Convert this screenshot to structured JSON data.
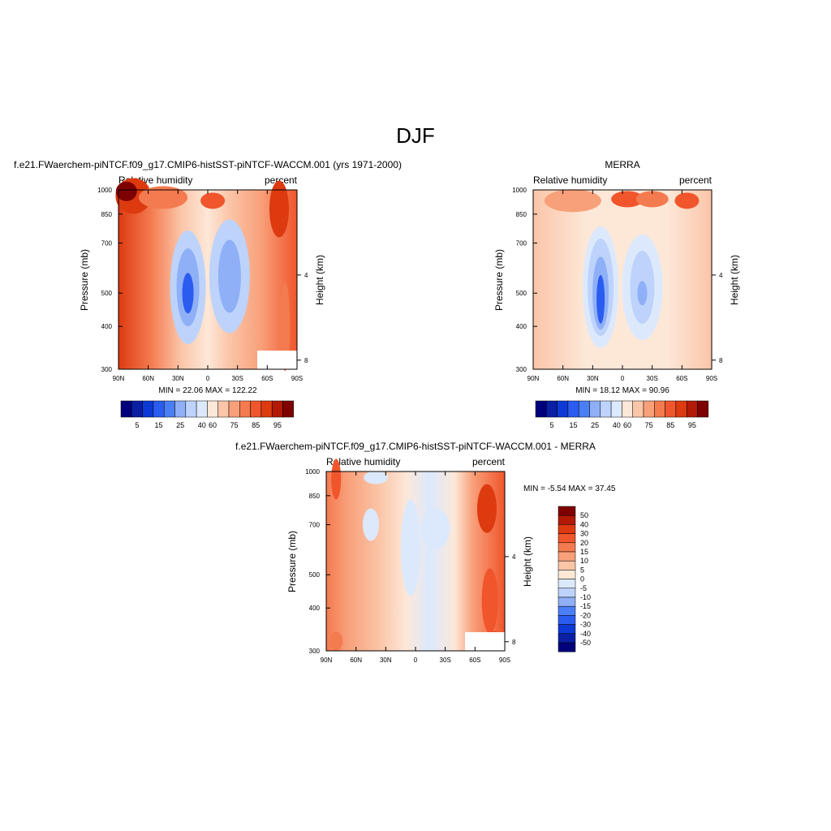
{
  "page": {
    "title": "DJF"
  },
  "colors": {
    "rh_scale": [
      "#00007a",
      "#0a1fa3",
      "#0d3ad6",
      "#2b5cf0",
      "#4a7ef5",
      "#8fb0f7",
      "#bdd3fb",
      "#dce9fd",
      "#fde8d8",
      "#fbc5a8",
      "#f8a07a",
      "#f47a4f",
      "#f0552c",
      "#dd3a10",
      "#b21a05",
      "#7f0000"
    ],
    "diff_scale": [
      "#7f0000",
      "#b21a05",
      "#dd3a10",
      "#f0552c",
      "#f47a4f",
      "#f8a07a",
      "#fbc5a8",
      "#fde8d8",
      "#dce9fd",
      "#bdd3fb",
      "#8fb0f7",
      "#4a7ef5",
      "#2b5cf0",
      "#0d3ad6",
      "#0a1fa3",
      "#00007a"
    ]
  },
  "chart_data": [
    {
      "type": "heatmap",
      "panel": "model",
      "title": "f.e21.FWaerchem-piNTCF.f09_g17.CMIP6-histSST-piNTCF-WACCM.001 (yrs 1971-2000)",
      "left_label": "Relative humidity",
      "right_label": "percent",
      "xlabel": "",
      "ylabel": "Pressure (mb)",
      "y2label": "Height (km)",
      "xticks": [
        "90N",
        "60N",
        "30N",
        "0",
        "30S",
        "60S",
        "90S"
      ],
      "yticks": [
        "300",
        "400",
        "500",
        "700",
        "850",
        "1000"
      ],
      "y2ticks": [
        "8",
        "4"
      ],
      "ylim": [
        1000,
        300
      ],
      "min": 22.06,
      "max": 122.22,
      "stats_text": "MIN =  22.06  MAX = 122.22",
      "colorbar_labels": [
        "5",
        "15",
        "25",
        "40",
        "60",
        "75",
        "85",
        "95"
      ],
      "fields": [
        {
          "lat": 10,
          "p": 500,
          "sx": 0.12,
          "sy": 0.35,
          "a": -60
        },
        {
          "lat": -20,
          "p": 560,
          "sx": 0.14,
          "sy": 0.35,
          "a": -45
        },
        {
          "lat": 70,
          "p": 950,
          "sx": 0.12,
          "sy": 0.2,
          "a": 40
        },
        {
          "lat": -75,
          "p": 800,
          "sx": 0.1,
          "sy": 0.25,
          "a": 30
        },
        {
          "lat": 0,
          "p": 900,
          "sx": 0.1,
          "sy": 0.12,
          "a": 15
        }
      ],
      "base": 65
    },
    {
      "type": "heatmap",
      "panel": "obs",
      "title": "MERRA",
      "left_label": "Relative humidity",
      "right_label": "percent",
      "xlabel": "",
      "ylabel": "Pressure (mb)",
      "y2label": "Height (km)",
      "xticks": [
        "90N",
        "60N",
        "30N",
        "0",
        "30S",
        "60S",
        "90S"
      ],
      "yticks": [
        "300",
        "400",
        "500",
        "700",
        "850",
        "1000"
      ],
      "y2ticks": [
        "8",
        "4"
      ],
      "ylim": [
        1000,
        300
      ],
      "min": 18.12,
      "max": 90.96,
      "stats_text": "MIN =  18.12  MAX =  90.96",
      "colorbar_labels": [
        "5",
        "15",
        "25",
        "40",
        "60",
        "75",
        "85",
        "95"
      ],
      "fields": [
        {
          "lat": 10,
          "p": 500,
          "sx": 0.12,
          "sy": 0.35,
          "a": -65
        },
        {
          "lat": -20,
          "p": 520,
          "sx": 0.13,
          "sy": 0.35,
          "a": -45
        },
        {
          "lat": 0,
          "p": 920,
          "sx": 0.35,
          "sy": 0.12,
          "a": 25
        }
      ],
      "base": 60
    },
    {
      "type": "heatmap",
      "panel": "diff",
      "title": "f.e21.FWaerchem-piNTCF.f09_g17.CMIP6-histSST-piNTCF-WACCM.001 - MERRA",
      "left_label": "Relative humidity",
      "right_label": "percent",
      "xlabel": "",
      "ylabel": "Pressure (mb)",
      "y2label": "Height (km)",
      "xticks": [
        "90N",
        "60N",
        "30N",
        "0",
        "30S",
        "60S",
        "90S"
      ],
      "yticks": [
        "300",
        "400",
        "500",
        "700",
        "850",
        "1000"
      ],
      "y2ticks": [
        "8",
        "4"
      ],
      "ylim": [
        1000,
        300
      ],
      "min": -5.54,
      "max": 37.45,
      "stats_text": "MIN =  -5.54  MAX =  37.45",
      "colorbar_labels": [
        "50",
        "40",
        "30",
        "20",
        "15",
        "10",
        "5",
        "0",
        "-5",
        "-10",
        "-15",
        "-20",
        "-30",
        "-40",
        "-50"
      ]
    }
  ]
}
